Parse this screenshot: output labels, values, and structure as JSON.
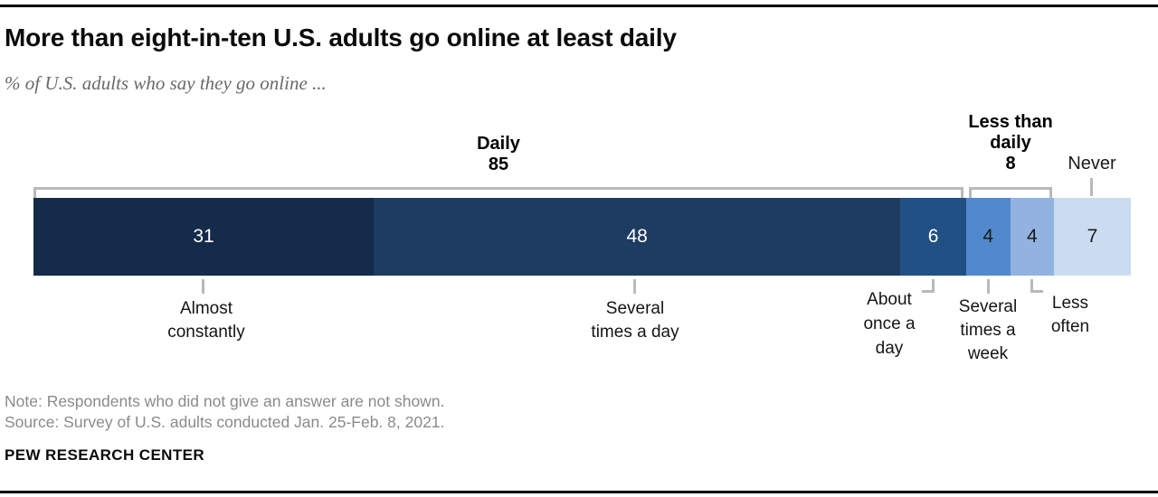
{
  "header": {
    "title": "More than eight-in-ten U.S. adults go online at least daily",
    "subtitle": "% of U.S. adults who say they go online ..."
  },
  "chart_data": {
    "type": "bar",
    "orientation": "horizontal-stacked",
    "unit": "%",
    "title": "More than eight-in-ten U.S. adults go online at least daily",
    "subtitle": "% of U.S. adults who say they go online ...",
    "xlim": [
      0,
      100
    ],
    "segments": [
      {
        "label": "Almost constantly",
        "value": 31,
        "color": "#142b49",
        "text_color": "#ffffff"
      },
      {
        "label": "Several times a day",
        "value": 48,
        "color": "#1e3c61",
        "text_color": "#ffffff"
      },
      {
        "label": "About once a day",
        "value": 6,
        "color": "#215084",
        "text_color": "#ffffff"
      },
      {
        "label": "Several times a week",
        "value": 4,
        "color": "#5289cd",
        "text_color": "#1a1a1a"
      },
      {
        "label": "Less often",
        "value": 4,
        "color": "#92b3e0",
        "text_color": "#1a1a1a"
      },
      {
        "label": "Never",
        "value": 7,
        "color": "#cbdcf1",
        "text_color": "#1a1a1a"
      }
    ],
    "groups": [
      {
        "label": "Daily",
        "value": 85
      },
      {
        "label": "Less than daily",
        "value": 8
      },
      {
        "label": "Never",
        "value": 7
      }
    ]
  },
  "annotations": {
    "daily_line": "Daily",
    "daily_value": "85",
    "ltd_line1": "Less than",
    "ltd_line2": "daily",
    "ltd_value": "8",
    "never_label": "Never"
  },
  "footer": {
    "note": "Note: Respondents who did not give an answer are not shown.",
    "source": "Source: Survey of U.S. adults conducted Jan. 25-Feb. 8, 2021.",
    "brand": "PEW RESEARCH CENTER"
  },
  "colors": {
    "bracket_gray": "#b9b9b9",
    "rule_black": "#000000",
    "note_gray": "#8a8a8a",
    "subtitle_gray": "#696969"
  }
}
